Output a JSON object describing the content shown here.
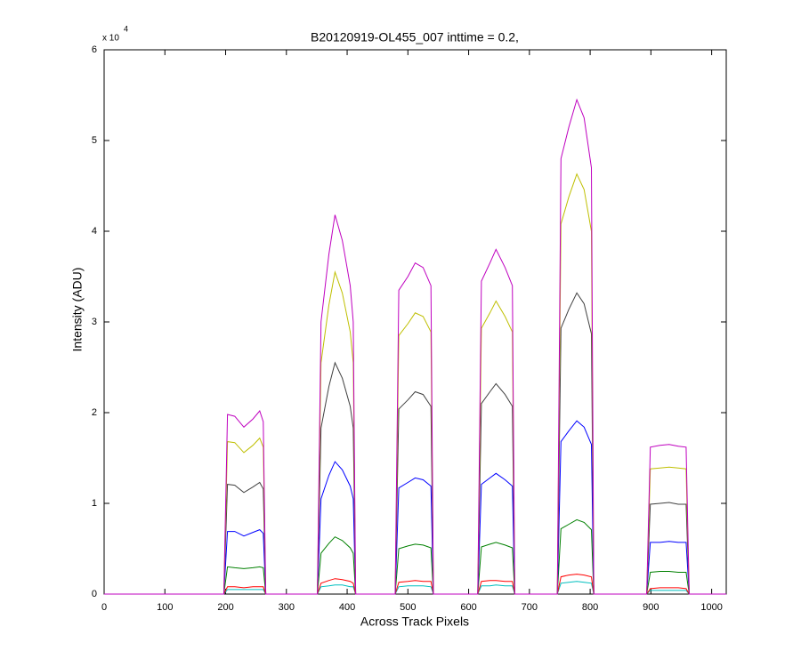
{
  "chart_data": {
    "type": "line",
    "title": "B20120919-OL455_007 inttime = 0.2,",
    "x_label": "Across Track Pixels",
    "y_label": "Intensity (ADU)",
    "y_multiplier": "x 10",
    "y_multiplier_exp": "4",
    "xlim": [
      0,
      1024
    ],
    "ylim": [
      0,
      60000
    ],
    "xticks": [
      0,
      100,
      200,
      300,
      400,
      500,
      600,
      700,
      800,
      900,
      1000
    ],
    "yticks": [
      {
        "value": 0,
        "label": "0"
      },
      {
        "value": 10000,
        "label": "1"
      },
      {
        "value": 20000,
        "label": "2"
      },
      {
        "value": 30000,
        "label": "3"
      },
      {
        "value": 40000,
        "label": "4"
      },
      {
        "value": 50000,
        "label": "5"
      },
      {
        "value": 60000,
        "label": "6"
      }
    ],
    "x": [
      0,
      197,
      203,
      215,
      230,
      245,
      256,
      262,
      266,
      351,
      357,
      370,
      380,
      392,
      405,
      410,
      414,
      479,
      485,
      500,
      512,
      525,
      538,
      542,
      615,
      621,
      635,
      645,
      660,
      672,
      676,
      746,
      752,
      765,
      778,
      790,
      802,
      806,
      893,
      899,
      915,
      930,
      945,
      958,
      963,
      1024
    ],
    "series": [
      {
        "color": "#bf00bf",
        "values": [
          0,
          0,
          19800,
          19600,
          18400,
          19300,
          20200,
          19000,
          0,
          0,
          30000,
          37500,
          41800,
          39000,
          34000,
          30000,
          0,
          0,
          33500,
          35000,
          36500,
          36000,
          34000,
          0,
          0,
          34500,
          36500,
          38000,
          36000,
          34000,
          0,
          0,
          48000,
          51500,
          54500,
          52500,
          47000,
          0,
          0,
          16200,
          16400,
          16500,
          16300,
          16200,
          0,
          0
        ]
      },
      {
        "color": "#bfbf00",
        "values": [
          0,
          0,
          16800,
          16700,
          15600,
          16400,
          17200,
          16200,
          0,
          0,
          25500,
          31900,
          35500,
          33200,
          28900,
          25500,
          0,
          0,
          28500,
          29800,
          31000,
          30600,
          28900,
          0,
          0,
          29300,
          31000,
          32300,
          30600,
          28900,
          0,
          0,
          40800,
          43800,
          46300,
          44600,
          40000,
          0,
          0,
          13800,
          13900,
          14000,
          13900,
          13800,
          0,
          0
        ]
      },
      {
        "color": "#404040",
        "values": [
          0,
          0,
          12100,
          12000,
          11200,
          11800,
          12300,
          11600,
          0,
          0,
          18300,
          22900,
          25500,
          23800,
          20700,
          18300,
          0,
          0,
          20400,
          21400,
          22300,
          22000,
          20700,
          0,
          0,
          21000,
          22300,
          23200,
          22000,
          20700,
          0,
          0,
          29300,
          31400,
          33200,
          32000,
          28700,
          0,
          0,
          9900,
          10000,
          10100,
          9900,
          9900,
          0,
          0
        ]
      },
      {
        "color": "#0000ff",
        "values": [
          0,
          0,
          6900,
          6900,
          6400,
          6800,
          7100,
          6700,
          0,
          0,
          10500,
          13100,
          14600,
          13700,
          11900,
          10500,
          0,
          0,
          11700,
          12300,
          12800,
          12600,
          11900,
          0,
          0,
          12100,
          12800,
          13300,
          12600,
          11900,
          0,
          0,
          16800,
          18000,
          19100,
          18400,
          16500,
          0,
          0,
          5700,
          5700,
          5800,
          5700,
          5700,
          0,
          0
        ]
      },
      {
        "color": "#008000",
        "values": [
          0,
          0,
          3000,
          2900,
          2800,
          2900,
          3000,
          2900,
          0,
          0,
          4500,
          5600,
          6300,
          5900,
          5100,
          4500,
          0,
          0,
          5000,
          5300,
          5500,
          5400,
          5100,
          0,
          0,
          5200,
          5500,
          5700,
          5400,
          5100,
          0,
          0,
          7200,
          7700,
          8200,
          7900,
          7100,
          0,
          0,
          2400,
          2500,
          2500,
          2400,
          2400,
          0,
          0
        ]
      },
      {
        "color": "#ff0000",
        "values": [
          0,
          0,
          800,
          800,
          700,
          800,
          800,
          800,
          0,
          0,
          1200,
          1500,
          1700,
          1600,
          1400,
          1200,
          0,
          0,
          1300,
          1400,
          1500,
          1400,
          1400,
          0,
          0,
          1400,
          1500,
          1500,
          1400,
          1400,
          0,
          0,
          1900,
          2100,
          2200,
          2100,
          1900,
          0,
          0,
          600,
          700,
          700,
          700,
          600,
          0,
          0
        ]
      },
      {
        "color": "#00bfbf",
        "values": [
          0,
          0,
          500,
          500,
          500,
          500,
          500,
          500,
          0,
          0,
          800,
          900,
          1000,
          1000,
          800,
          800,
          0,
          0,
          800,
          900,
          900,
          900,
          800,
          0,
          0,
          900,
          900,
          1000,
          900,
          900,
          0,
          0,
          1200,
          1300,
          1400,
          1300,
          1200,
          0,
          0,
          400,
          400,
          400,
          400,
          400,
          0,
          0
        ]
      }
    ]
  }
}
